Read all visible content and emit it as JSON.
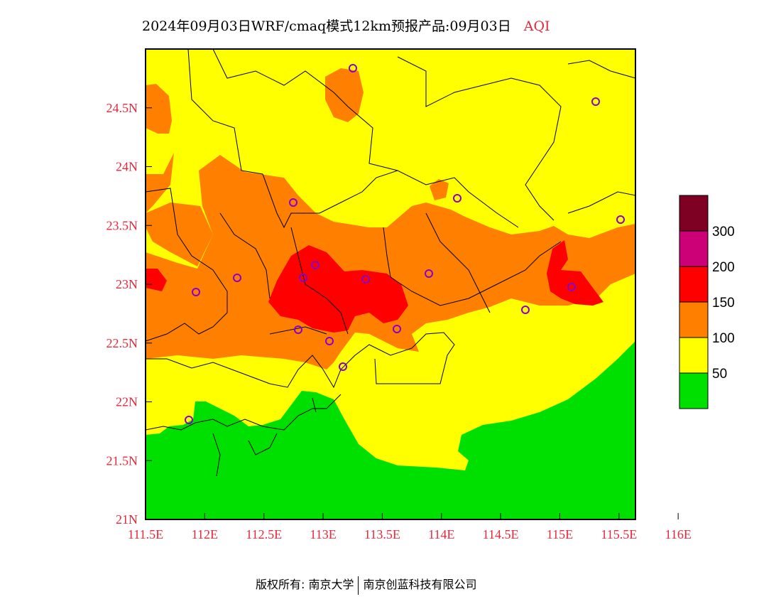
{
  "title": {
    "main": "2024年09月03日WRF/cmaq模式12km预报产品:09月03日",
    "variable": "AQI"
  },
  "axes": {
    "x_ticks": [
      "111.5E",
      "112E",
      "112.5E",
      "113E",
      "113.5E",
      "114E",
      "114.5E",
      "115E",
      "115.5E",
      "116E"
    ],
    "x_values": [
      111.5,
      112.0,
      112.5,
      113.0,
      113.5,
      114.0,
      114.5,
      115.0,
      115.5,
      116.0
    ],
    "y_ticks": [
      "21N",
      "21.5N",
      "22N",
      "22.5N",
      "23N",
      "23.5N",
      "24N",
      "24.5N"
    ],
    "y_values": [
      21.0,
      21.5,
      22.0,
      22.5,
      23.0,
      23.5,
      24.0,
      24.5
    ],
    "lon_range": [
      111.5,
      115.6
    ],
    "lat_range": [
      21.0,
      25.0
    ]
  },
  "legend": {
    "labels": [
      "50",
      "100",
      "150",
      "200",
      "300"
    ],
    "colors": [
      "#00e000",
      "#ffff00",
      "#ff8000",
      "#ff0000",
      "#cc0077",
      "#7e0023"
    ]
  },
  "colors": {
    "good": "#00e000",
    "moderate": "#ffff00",
    "usg": "#ff8000",
    "unhealthy": "#ff0000",
    "station": "#8800cc",
    "labels": "#e8283a"
  },
  "footer": {
    "left": "版权所有: 南京大学",
    "right": "南京创蓝科技有限公司"
  }
}
